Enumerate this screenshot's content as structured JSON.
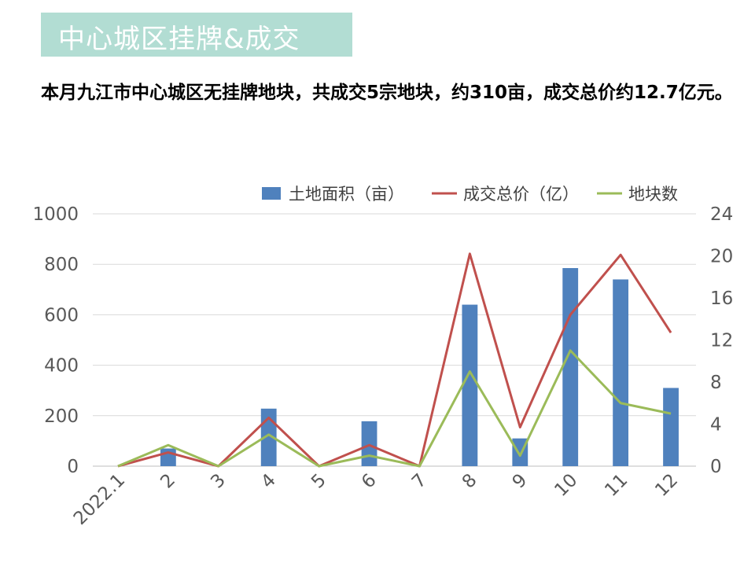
{
  "header": {
    "title": "中心城区挂牌&成交",
    "summary": "本月九江市中心城区无挂牌地块，共成交5宗地块，约310亩，成交总价约12.7亿元。"
  },
  "colors": {
    "bar": "#4f81bd",
    "price_line": "#c0504d",
    "count_line": "#9bbb59",
    "title_bg": "#b2ddd3"
  },
  "chart_data": {
    "type": "bar",
    "categories": [
      "2022.1",
      "2",
      "3",
      "4",
      "5",
      "6",
      "7",
      "8",
      "9",
      "10",
      "11",
      "12"
    ],
    "series": [
      {
        "name": "土地面积（亩）",
        "type": "bar",
        "axis": "left",
        "values": [
          0,
          70,
          0,
          228,
          0,
          178,
          0,
          640,
          110,
          785,
          740,
          310
        ]
      },
      {
        "name": "成交总价（亿）",
        "type": "line",
        "axis": "right",
        "values": [
          0,
          1.3,
          0,
          4.6,
          0,
          2.0,
          0,
          20.2,
          3.7,
          14.4,
          20.1,
          12.7
        ]
      },
      {
        "name": "地块数",
        "type": "line",
        "axis": "right",
        "values": [
          0,
          2,
          0,
          3,
          0,
          1,
          0,
          9,
          1,
          11,
          6,
          5
        ]
      }
    ],
    "left_axis": {
      "ylim": [
        0,
        1000
      ],
      "ticks": [
        "0",
        "200",
        "400",
        "600",
        "800",
        "1000"
      ]
    },
    "right_axis": {
      "ylim": [
        0,
        24
      ],
      "ticks": [
        "0",
        "4",
        "8",
        "12",
        "16",
        "20",
        "24"
      ]
    },
    "grid": true,
    "legend_position": "top-right"
  }
}
